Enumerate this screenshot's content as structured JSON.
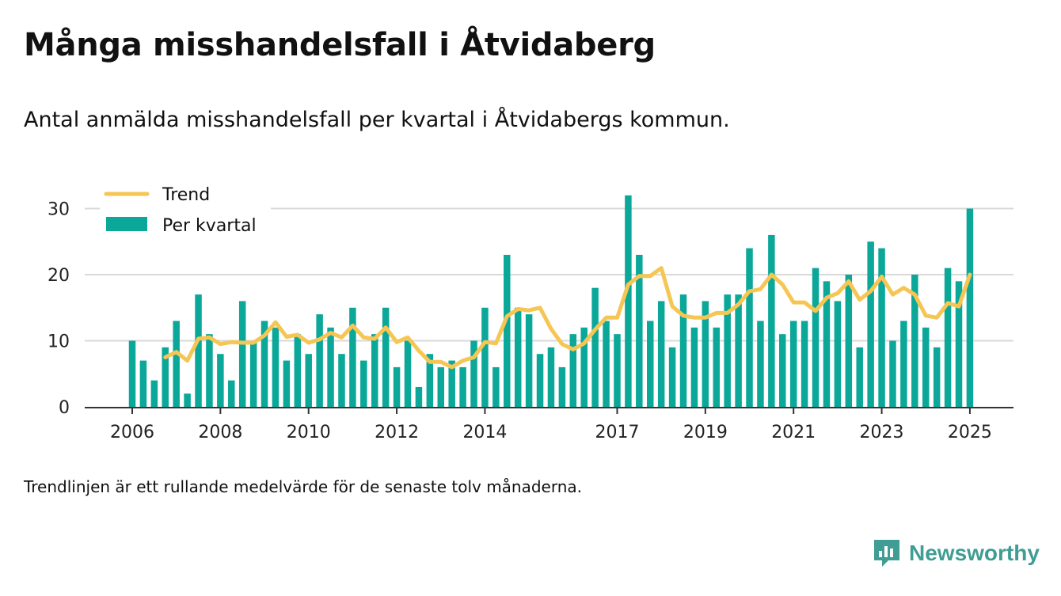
{
  "title": "Många misshandelsfall i Åtvidaberg",
  "subtitle": "Antal anmälda misshandelsfall per kvartal i Åtvidabergs kommun.",
  "note": "Trendlinjen är ett rullande medelvärde för de senaste tolv månaderna.",
  "brand": "Newsworthy",
  "colors": {
    "bar": "#0ba89a",
    "trend": "#f6c654",
    "grid": "#d9d9d9",
    "axis": "#333333",
    "brand": "#3f9d94"
  },
  "chart_data": {
    "type": "bar",
    "ylim": [
      0,
      32
    ],
    "yticks": [
      0,
      10,
      20,
      30
    ],
    "xticks": [
      "2006",
      "2008",
      "2010",
      "2012",
      "2014",
      "2017",
      "2019",
      "2021",
      "2023",
      "2025"
    ],
    "legend": {
      "position": "top-left",
      "trend_label": "Trend",
      "bar_label": "Per kvartal"
    },
    "grid": "horizontal",
    "series": [
      {
        "name": "Per kvartal",
        "type": "bar",
        "values": [
          10,
          7,
          4,
          9,
          13,
          2,
          17,
          11,
          8,
          4,
          16,
          10,
          13,
          12,
          7,
          11,
          8,
          14,
          12,
          8,
          15,
          7,
          11,
          15,
          6,
          10,
          3,
          8,
          6,
          7,
          6,
          10,
          15,
          6,
          23,
          15,
          14,
          8,
          9,
          6,
          11,
          12,
          18,
          13,
          11,
          32,
          23,
          13,
          16,
          9,
          17,
          12,
          16,
          12,
          17,
          17,
          24,
          13,
          26,
          11,
          13,
          13,
          21,
          19,
          16,
          20,
          9,
          25,
          24,
          10,
          13,
          20,
          12,
          9,
          21,
          19,
          30
        ]
      },
      {
        "name": "Trend",
        "type": "line",
        "values": [
          null,
          null,
          null,
          7.5,
          8.3,
          7.0,
          10.3,
          10.5,
          9.5,
          9.8,
          9.7,
          9.7,
          10.8,
          12.8,
          10.6,
          10.9,
          9.7,
          10.2,
          11.2,
          10.5,
          12.3,
          10.5,
          10.3,
          12.0,
          9.8,
          10.5,
          8.5,
          6.8,
          6.8,
          6.0,
          7.0,
          7.5,
          9.8,
          9.6,
          13.7,
          14.8,
          14.6,
          15.0,
          11.8,
          9.5,
          8.7,
          9.6,
          11.7,
          13.5,
          13.5,
          18.5,
          19.8,
          19.8,
          21.0,
          15.2,
          13.8,
          13.5,
          13.5,
          14.2,
          14.2,
          15.5,
          17.5,
          17.8,
          20.0,
          18.5,
          15.8,
          15.8,
          14.5,
          16.5,
          17.2,
          19.0,
          16.2,
          17.5,
          19.7,
          17.0,
          18.0,
          17.0,
          13.8,
          13.5,
          15.7,
          15.2,
          20.0
        ]
      }
    ]
  }
}
